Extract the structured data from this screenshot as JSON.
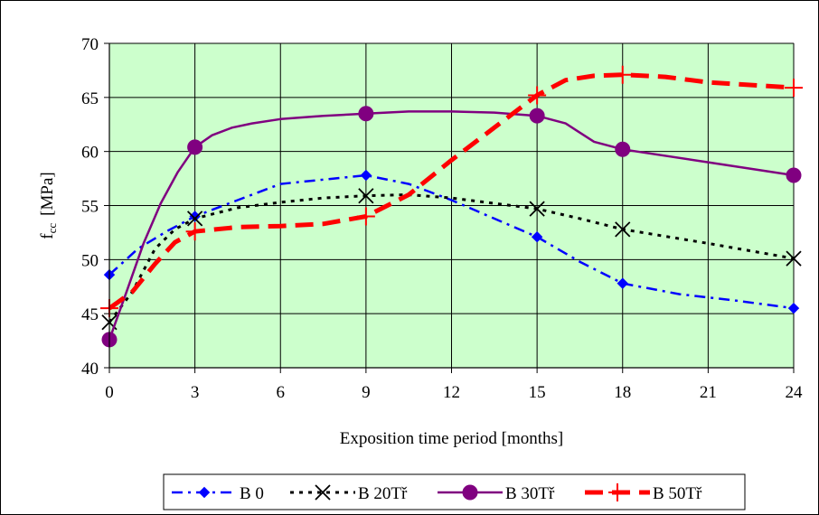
{
  "chart_data": {
    "type": "line",
    "xlabel": "Exposition time period [months]",
    "ylabel_main": "f",
    "ylabel_sub": "cc",
    "ylabel_unit": "[MPa]",
    "x_ticks": [
      "0",
      "3",
      "6",
      "9",
      "12",
      "15",
      "18",
      "21",
      "24"
    ],
    "y_ticks": [
      "40",
      "45",
      "50",
      "55",
      "60",
      "65",
      "70"
    ],
    "ylim": [
      40,
      70
    ],
    "grid": true,
    "plot_background": "#ccffcc",
    "legend_position": "bottom",
    "series": [
      {
        "name": "B 0",
        "color": "#0000ff",
        "marker": "diamond",
        "dash": "dash-dot",
        "markers": [
          [
            0,
            48.6
          ],
          [
            3,
            54.0
          ],
          [
            9,
            57.8
          ],
          [
            15,
            52.1
          ],
          [
            18,
            47.8
          ],
          [
            24,
            45.5
          ]
        ],
        "curve": [
          [
            0,
            48.6
          ],
          [
            1,
            51.0
          ],
          [
            2,
            52.6
          ],
          [
            3,
            54.0
          ],
          [
            4.5,
            55.5
          ],
          [
            6,
            57.0
          ],
          [
            7.5,
            57.4
          ],
          [
            9,
            57.8
          ],
          [
            10.5,
            57.0
          ],
          [
            12,
            55.5
          ],
          [
            13.5,
            53.8
          ],
          [
            15,
            52.1
          ],
          [
            16.5,
            49.8
          ],
          [
            18,
            47.8
          ],
          [
            20,
            46.8
          ],
          [
            22,
            46.2
          ],
          [
            24,
            45.5
          ]
        ]
      },
      {
        "name": "B 20Tř",
        "color": "#000000",
        "marker": "x",
        "dash": "dotted",
        "markers": [
          [
            0,
            44.2
          ],
          [
            3,
            53.8
          ],
          [
            9,
            55.9
          ],
          [
            15,
            54.7
          ],
          [
            18,
            52.8
          ],
          [
            24,
            50.1
          ]
        ],
        "curve": [
          [
            0,
            44.2
          ],
          [
            0.8,
            47.0
          ],
          [
            1.6,
            51.0
          ],
          [
            2.3,
            52.8
          ],
          [
            3,
            53.8
          ],
          [
            4.5,
            54.8
          ],
          [
            6,
            55.3
          ],
          [
            7.5,
            55.7
          ],
          [
            9,
            55.9
          ],
          [
            10.5,
            56.0
          ],
          [
            12,
            55.7
          ],
          [
            13.5,
            55.2
          ],
          [
            15,
            54.7
          ],
          [
            16.5,
            53.8
          ],
          [
            18,
            52.8
          ],
          [
            21,
            51.5
          ],
          [
            24,
            50.1
          ]
        ]
      },
      {
        "name": "B 30Tř",
        "color": "#800080",
        "marker": "circle",
        "dash": "solid",
        "markers": [
          [
            0,
            42.6
          ],
          [
            3,
            60.4
          ],
          [
            9,
            63.5
          ],
          [
            15,
            63.3
          ],
          [
            18,
            60.2
          ],
          [
            24,
            57.8
          ]
        ],
        "curve": [
          [
            0,
            42.6
          ],
          [
            0.6,
            47.0
          ],
          [
            1.2,
            51.5
          ],
          [
            1.8,
            55.2
          ],
          [
            2.4,
            58.1
          ],
          [
            3,
            60.4
          ],
          [
            3.6,
            61.5
          ],
          [
            4.3,
            62.2
          ],
          [
            5,
            62.6
          ],
          [
            6,
            63.0
          ],
          [
            7.5,
            63.3
          ],
          [
            9,
            63.5
          ],
          [
            10.5,
            63.7
          ],
          [
            12,
            63.7
          ],
          [
            13.5,
            63.6
          ],
          [
            15,
            63.3
          ],
          [
            16,
            62.6
          ],
          [
            17,
            60.9
          ],
          [
            18,
            60.2
          ],
          [
            21,
            59.0
          ],
          [
            24,
            57.8
          ]
        ]
      },
      {
        "name": "B 50Tř",
        "color": "#ff0000",
        "marker": "plus",
        "dash": "long-dash",
        "markers": [
          [
            0,
            45.5
          ],
          [
            3,
            52.6
          ],
          [
            9,
            54.0
          ],
          [
            15,
            65.2
          ],
          [
            18,
            67.1
          ],
          [
            24,
            65.9
          ]
        ],
        "curve": [
          [
            0,
            45.5
          ],
          [
            0.8,
            47.0
          ],
          [
            1.6,
            49.6
          ],
          [
            2.3,
            51.6
          ],
          [
            3,
            52.6
          ],
          [
            4.5,
            53.0
          ],
          [
            6,
            53.1
          ],
          [
            7.5,
            53.3
          ],
          [
            9,
            54.0
          ],
          [
            10.5,
            56.0
          ],
          [
            12,
            59.2
          ],
          [
            13.5,
            62.2
          ],
          [
            15,
            65.2
          ],
          [
            16,
            66.6
          ],
          [
            17,
            67.0
          ],
          [
            18,
            67.1
          ],
          [
            19.5,
            66.9
          ],
          [
            21,
            66.4
          ],
          [
            24,
            65.9
          ]
        ]
      }
    ]
  }
}
